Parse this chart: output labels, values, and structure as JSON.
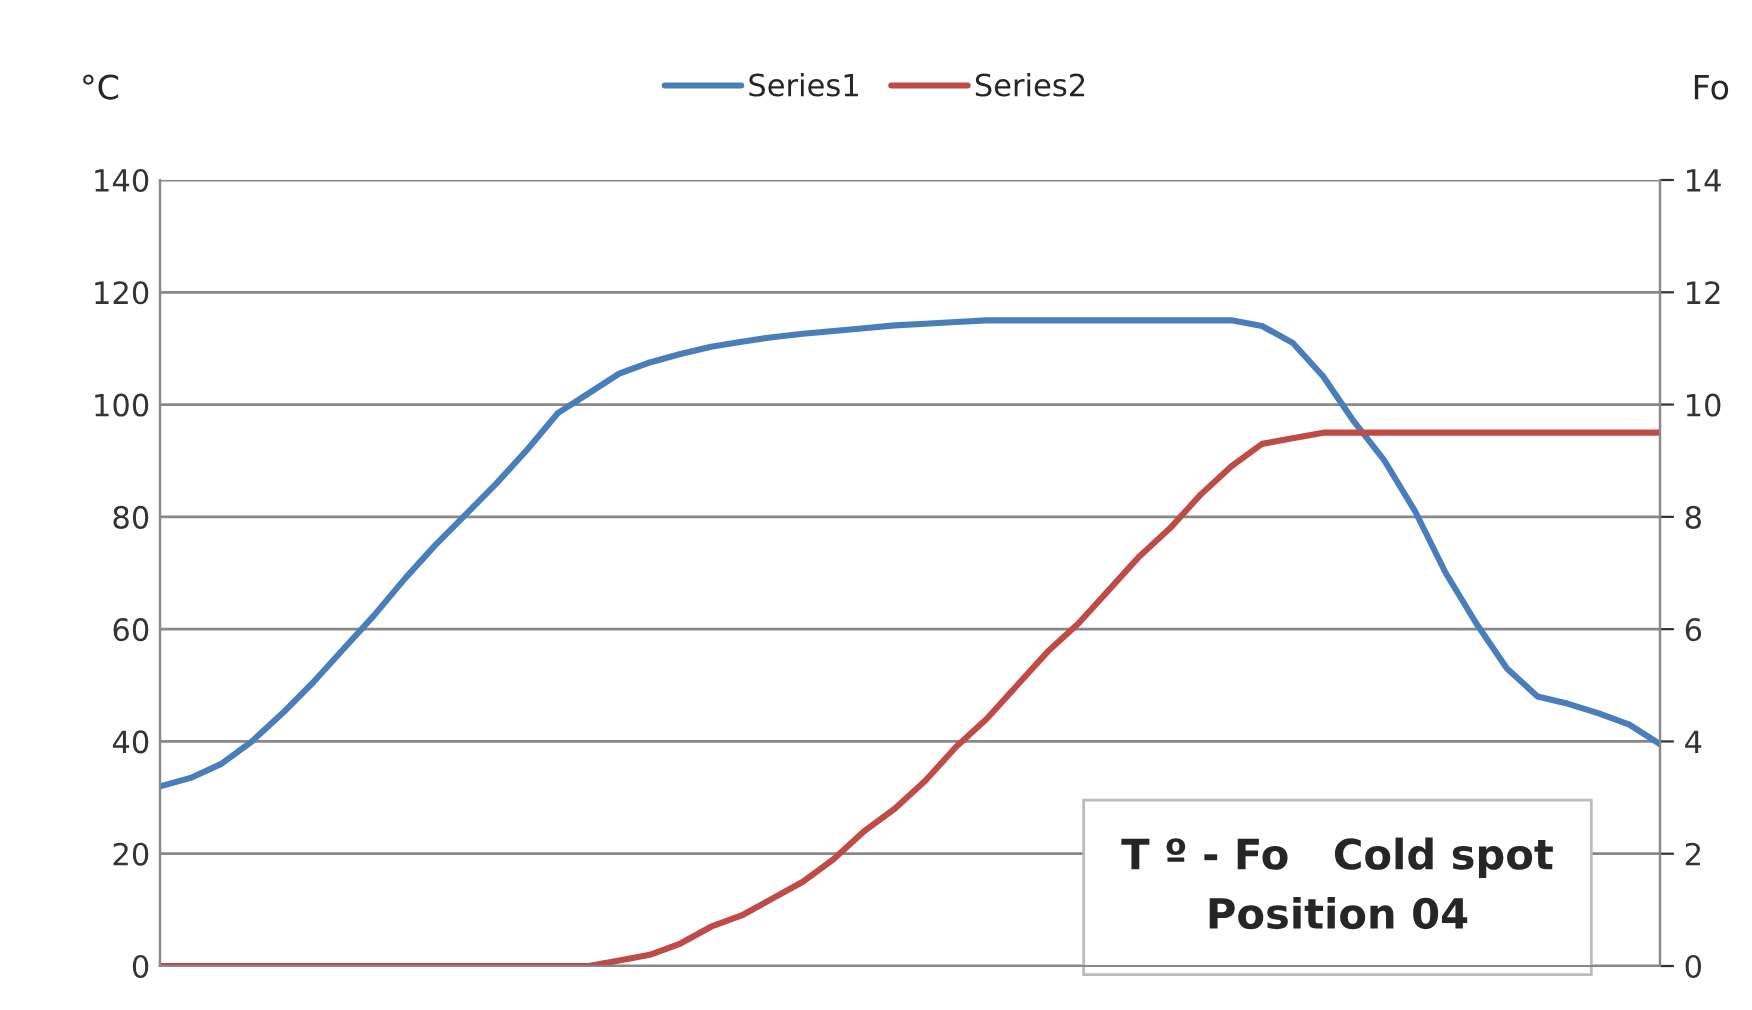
{
  "chart_data": {
    "type": "line",
    "categories": [
      null,
      null,
      null,
      null,
      null,
      null,
      null,
      null,
      null,
      null,
      null,
      null,
      null,
      null,
      null,
      null,
      null,
      null,
      null,
      null,
      null,
      null,
      null,
      null,
      null,
      null,
      null,
      null,
      null,
      null,
      null,
      null,
      null,
      null,
      null,
      null,
      null,
      null,
      null,
      null,
      null,
      null,
      null,
      null,
      null,
      null,
      null,
      null,
      null,
      null
    ],
    "series": [
      {
        "name": "Series1",
        "color": "#4a7ebb",
        "values": [
          32,
          33.5,
          36,
          40,
          45,
          50.5,
          56.5,
          62.5,
          69,
          75,
          80.5,
          86,
          92,
          98.5,
          102,
          105.5,
          107.5,
          109,
          110.3,
          111.2,
          112,
          112.6,
          113.1,
          113.6,
          114.1,
          114.4,
          114.7,
          115,
          115,
          115,
          115,
          115,
          115,
          115,
          115,
          115,
          114,
          111,
          105,
          97,
          90,
          81,
          70,
          61,
          53,
          48,
          46.7,
          45,
          43,
          39.5
        ]
      },
      {
        "name": "Series2",
        "color": "#be4b48",
        "axis": "y2",
        "values": [
          0,
          0,
          0,
          0,
          0,
          0,
          0,
          0,
          0,
          0,
          0,
          0,
          0,
          0,
          0,
          0.1,
          0.2,
          0.4,
          0.7,
          0.9,
          1.2,
          1.5,
          1.9,
          2.4,
          2.8,
          3.3,
          3.9,
          4.4,
          5.0,
          5.6,
          6.1,
          6.7,
          7.3,
          7.8,
          8.4,
          8.9,
          9.3,
          9.4,
          9.5,
          9.5,
          9.5,
          9.5,
          9.5,
          9.5,
          9.5,
          9.5,
          9.5,
          9.5,
          9.5,
          9.5
        ]
      }
    ],
    "ylabel": "°C",
    "y2label": "Fo",
    "ylim": [
      0,
      140
    ],
    "yticks": [
      0,
      20,
      40,
      60,
      80,
      100,
      120,
      140
    ],
    "y2lim": [
      0,
      14
    ],
    "y2ticks": [
      0,
      2,
      4,
      6,
      8,
      10,
      12,
      14
    ],
    "grid": "y",
    "legend": "top",
    "tick_labels": "y",
    "annotations": [
      "T º - Fo   Cold spot\nPosition 04"
    ]
  }
}
